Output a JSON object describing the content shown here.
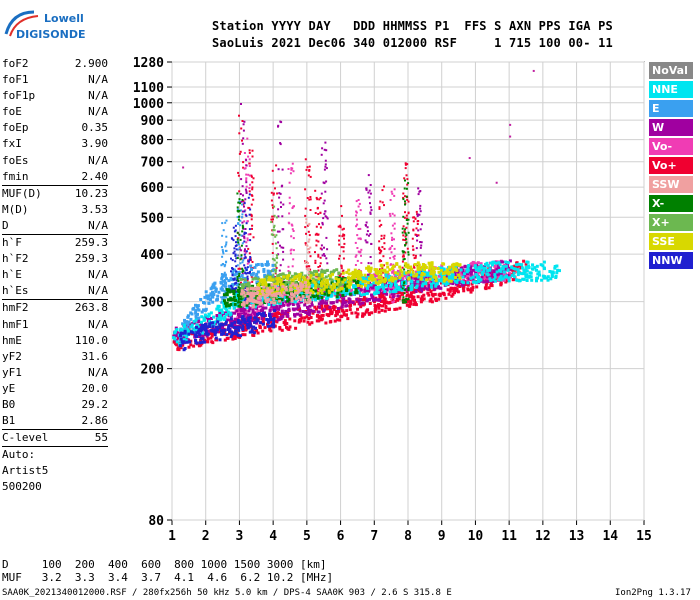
{
  "logo": {
    "line1": "Lowell",
    "line2": "DIGISONDE"
  },
  "header": {
    "labels": "Station YYYY DAY   DDD HHMMSS P1  FFS S AXN PPS IGA PS",
    "values": "SaoLuis 2021 Dec06 340 012000 RSF     1 715 100 00- 11"
  },
  "params_group1": [
    {
      "k": "foF2",
      "v": "2.900"
    },
    {
      "k": "foF1",
      "v": "N/A"
    },
    {
      "k": "foF1p",
      "v": "N/A"
    },
    {
      "k": "foE",
      "v": "N/A"
    },
    {
      "k": "foEp",
      "v": "0.35"
    },
    {
      "k": "fxI",
      "v": "3.90"
    },
    {
      "k": "foEs",
      "v": "N/A"
    },
    {
      "k": "fmin",
      "v": "2.40"
    }
  ],
  "params_group2": [
    {
      "k": "MUF(D)",
      "v": "10.23"
    },
    {
      "k": "M(D)",
      "v": "3.53"
    },
    {
      "k": "D",
      "v": "N/A"
    }
  ],
  "params_group3": [
    {
      "k": "h`F",
      "v": "259.3"
    },
    {
      "k": "h`F2",
      "v": "259.3"
    },
    {
      "k": "h`E",
      "v": "N/A"
    },
    {
      "k": "h`Es",
      "v": "N/A"
    }
  ],
  "params_group4": [
    {
      "k": "hmF2",
      "v": "263.8"
    },
    {
      "k": "hmF1",
      "v": "N/A"
    },
    {
      "k": "hmE",
      "v": "110.0"
    },
    {
      "k": "yF2",
      "v": "31.6"
    },
    {
      "k": "yF1",
      "v": "N/A"
    },
    {
      "k": "yE",
      "v": "20.0"
    },
    {
      "k": "B0",
      "v": "29.2"
    },
    {
      "k": "B1",
      "v": "2.86"
    }
  ],
  "params_group5": [
    {
      "k": "C-level",
      "v": "55"
    }
  ],
  "auto_lines": [
    "Auto:",
    "Artist5",
    "500200"
  ],
  "legend": [
    {
      "label": "NoVal",
      "color": "#888888"
    },
    {
      "label": "NNE",
      "color": "#00e5f0"
    },
    {
      "label": "E",
      "color": "#3aa0f0"
    },
    {
      "label": "W",
      "color": "#a000a0"
    },
    {
      "label": "Vo-",
      "color": "#f03cb4"
    },
    {
      "label": "Vo+",
      "color": "#f00030"
    },
    {
      "label": "SSW",
      "color": "#f0a0a0"
    },
    {
      "label": "X-",
      "color": "#008000"
    },
    {
      "label": "X+",
      "color": "#6cb850"
    },
    {
      "label": "SSE",
      "color": "#d8d800"
    },
    {
      "label": "NNW",
      "color": "#2020d0"
    }
  ],
  "footer": {
    "d_row": "D     100  200  400  600  800 1000 1500 3000 [km]",
    "muf_row": "MUF   3.2  3.3  3.4  3.7  4.1  4.6  6.2 10.2 [MHz]",
    "file_line": "SAA0K_2021340012000.RSF / 280fx256h 50 kHz 5.0 km / DPS-4 SAA0K 903 / 2.6 S 315.8 E",
    "version": "Ion2Png 1.3.17"
  },
  "chart_data": {
    "type": "scatter",
    "title": "",
    "xlabel": "",
    "ylabel": "",
    "x_ticks": [
      1,
      2,
      3,
      4,
      5,
      6,
      7,
      8,
      9,
      10,
      11,
      12,
      13,
      14,
      15
    ],
    "y_ticks": [
      80,
      200,
      300,
      400,
      500,
      600,
      700,
      800,
      900,
      1000,
      1100,
      1280
    ],
    "xlim": [
      1,
      15
    ],
    "ylim": [
      80,
      1280
    ],
    "y_scale": "log",
    "grid": true,
    "series": [
      {
        "name": "Vo+",
        "color": "#f00030",
        "trace": [
          [
            1.0,
            232
          ],
          [
            2.0,
            242
          ],
          [
            2.5,
            248
          ],
          [
            3.0,
            252
          ],
          [
            4.0,
            262
          ],
          [
            5.0,
            270
          ],
          [
            6.0,
            280
          ],
          [
            7.0,
            292
          ],
          [
            8.0,
            305
          ],
          [
            9.0,
            318
          ],
          [
            10.0,
            335
          ],
          [
            11.0,
            352
          ],
          [
            11.5,
            360
          ]
        ],
        "columns": [
          [
            3.0,
            260,
            940
          ],
          [
            3.3,
            300,
            900
          ],
          [
            4.0,
            300,
            700
          ],
          [
            5.0,
            300,
            720
          ],
          [
            5.3,
            320,
            600
          ],
          [
            6.0,
            300,
            540
          ],
          [
            7.2,
            300,
            640
          ],
          [
            7.9,
            300,
            700
          ],
          [
            8.2,
            320,
            520
          ]
        ]
      },
      {
        "name": "Vo-",
        "color": "#f03cb4",
        "trace": [
          [
            2.8,
            280
          ],
          [
            4.0,
            300
          ],
          [
            5.0,
            310
          ],
          [
            6.0,
            320
          ],
          [
            7.0,
            330
          ],
          [
            8.0,
            340
          ],
          [
            9.0,
            350
          ],
          [
            10.0,
            355
          ],
          [
            11.0,
            358
          ]
        ],
        "columns": [
          [
            3.2,
            300,
            820
          ],
          [
            4.5,
            300,
            700
          ],
          [
            6.5,
            320,
            560
          ],
          [
            7.5,
            300,
            600
          ]
        ]
      },
      {
        "name": "W",
        "color": "#a000a0",
        "trace": [
          [
            1.0,
            240
          ],
          [
            2.0,
            255
          ],
          [
            3.0,
            270
          ],
          [
            4.0,
            280
          ],
          [
            5.0,
            290
          ],
          [
            6.0,
            300
          ],
          [
            7.0,
            315
          ],
          [
            8.0,
            330
          ],
          [
            9.0,
            340
          ],
          [
            10.0,
            350
          ],
          [
            11.0,
            360
          ]
        ],
        "columns": [
          [
            3.1,
            280,
            1000
          ],
          [
            4.2,
            300,
            900
          ],
          [
            5.5,
            320,
            800
          ],
          [
            6.8,
            320,
            660
          ],
          [
            8.3,
            320,
            600
          ]
        ]
      },
      {
        "name": "E",
        "color": "#3aa0f0",
        "trace": [
          [
            1.2,
            240
          ],
          [
            2.0,
            300
          ],
          [
            2.5,
            330
          ],
          [
            3.0,
            345
          ],
          [
            3.5,
            350
          ],
          [
            4.0,
            360
          ]
        ],
        "columns": [
          [
            2.5,
            300,
            500
          ],
          [
            3.0,
            300,
            560
          ]
        ]
      },
      {
        "name": "NNE",
        "color": "#00e5f0",
        "trace": [
          [
            1.0,
            235
          ],
          [
            2.0,
            260
          ],
          [
            3.0,
            300
          ],
          [
            10.5,
            355
          ],
          [
            12.0,
            356
          ],
          [
            12.5,
            357
          ]
        ],
        "columns": []
      },
      {
        "name": "NNW",
        "color": "#2020d0",
        "trace": [
          [
            1.2,
            232
          ],
          [
            2.0,
            245
          ],
          [
            3.0,
            255
          ],
          [
            4.0,
            265
          ]
        ],
        "columns": [
          [
            2.8,
            320,
            480
          ],
          [
            3.2,
            300,
            600
          ]
        ]
      },
      {
        "name": "X-",
        "color": "#008000",
        "trace": [
          [
            2.5,
            300
          ],
          [
            3.5,
            310
          ],
          [
            4.5,
            315
          ],
          [
            5.5,
            320
          ],
          [
            6.5,
            330
          ]
        ],
        "columns": [
          [
            3.0,
            300,
            600
          ],
          [
            7.9,
            300,
            640
          ]
        ]
      },
      {
        "name": "X+",
        "color": "#6cb850",
        "trace": [
          [
            3.0,
            320
          ],
          [
            4.0,
            330
          ],
          [
            5.0,
            335
          ],
          [
            6.0,
            340
          ]
        ],
        "columns": [
          [
            4.0,
            300,
            550
          ]
        ]
      },
      {
        "name": "SSE",
        "color": "#d8d800",
        "trace": [
          [
            3.5,
            320
          ],
          [
            4.5,
            330
          ],
          [
            5.5,
            330
          ],
          [
            7.5,
            355
          ],
          [
            8.5,
            355
          ],
          [
            9.5,
            355
          ]
        ],
        "columns": []
      },
      {
        "name": "SSW",
        "color": "#f0a0a0",
        "trace": [
          [
            3.0,
            300
          ],
          [
            5.0,
            320
          ]
        ],
        "columns": [
          [
            5.0,
            300,
            500
          ]
        ]
      },
      {
        "name": "NoVal",
        "color": "#888888",
        "trace": [],
        "columns": []
      }
    ],
    "outliers": [
      [
        11.7,
        1220
      ],
      [
        11.0,
        880
      ],
      [
        11.0,
        820
      ],
      [
        9.8,
        720
      ],
      [
        10.6,
        620
      ],
      [
        1.3,
        680
      ]
    ]
  }
}
